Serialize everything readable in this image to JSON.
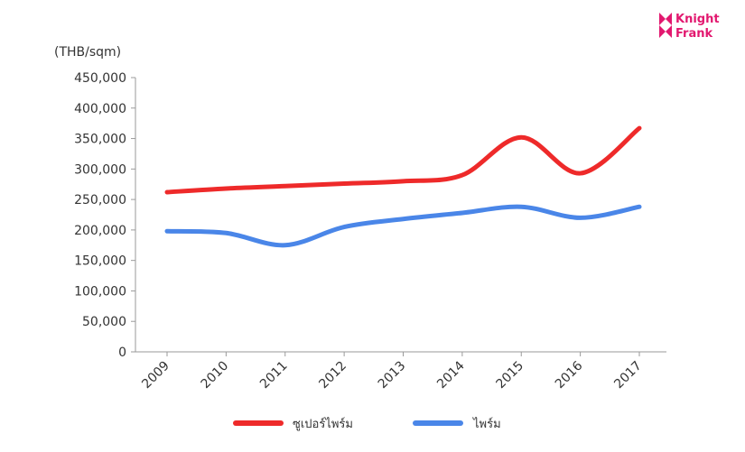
{
  "brand": {
    "line1": "Knight",
    "line2": "Frank",
    "color": "#e2186f"
  },
  "chart_data": {
    "type": "line",
    "ylabel": "(THB/sqm)",
    "ylim": [
      0,
      450000
    ],
    "yticks": [
      0,
      50000,
      100000,
      150000,
      200000,
      250000,
      300000,
      350000,
      400000,
      450000
    ],
    "ytick_labels": [
      "0",
      "50,000",
      "100,000",
      "150,000",
      "200,000",
      "250,000",
      "300,000",
      "350,000",
      "400,000",
      "450,000"
    ],
    "categories": [
      "2009",
      "2010",
      "2011",
      "2012",
      "2013",
      "2014",
      "2015",
      "2016",
      "2017"
    ],
    "grid": false,
    "legend": "bottom",
    "series": [
      {
        "name": "ซูเปอร์ไพร์ม",
        "color": "#ee2a2a",
        "values": [
          262000,
          268000,
          272000,
          276000,
          280000,
          290000,
          352000,
          293000,
          367000
        ]
      },
      {
        "name": "ไพร์ม",
        "color": "#4a86e8",
        "values": [
          198000,
          195000,
          175000,
          205000,
          218000,
          228000,
          238000,
          220000,
          238000
        ]
      }
    ]
  }
}
